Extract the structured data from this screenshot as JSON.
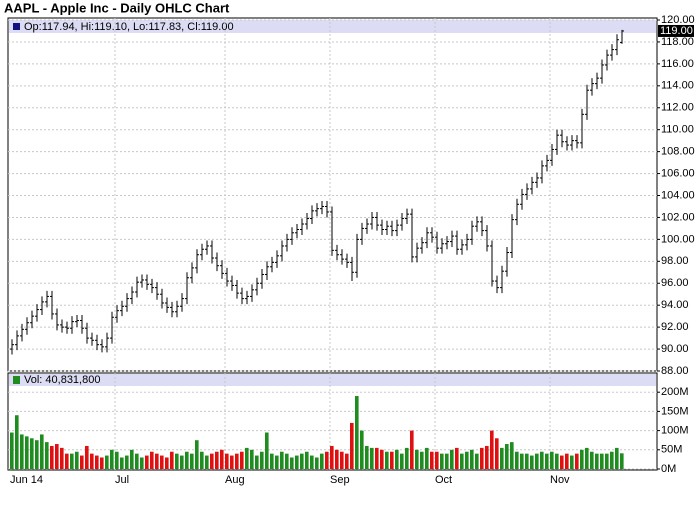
{
  "chart_data": {
    "type": "ohlc",
    "title": "AAPL - Apple Inc - Daily OHLC Chart",
    "price_legend": "Op:117.94, Hi:119.10, Lo:117.83, Cl:119.00",
    "volume_legend": "Vol: 40,831,800",
    "last_label": "119.00",
    "bar_color": "#000000",
    "up_color": "#1e8c1e",
    "down_color": "#e01010",
    "legend_band_color": "#dcdcf4",
    "grid": true,
    "categories": [
      "Jun 14",
      null,
      null,
      null,
      null,
      null,
      null,
      null,
      null,
      null,
      null,
      null,
      null,
      null,
      null,
      null,
      null,
      null,
      null,
      null,
      null,
      "Jul",
      null,
      null,
      null,
      null,
      null,
      null,
      null,
      null,
      null,
      null,
      null,
      null,
      null,
      null,
      null,
      null,
      null,
      null,
      null,
      null,
      null,
      "Aug",
      null,
      null,
      null,
      null,
      null,
      null,
      null,
      null,
      null,
      null,
      null,
      null,
      null,
      null,
      null,
      null,
      null,
      null,
      null,
      null,
      "Sep",
      null,
      null,
      null,
      null,
      null,
      null,
      null,
      null,
      null,
      null,
      null,
      null,
      null,
      null,
      null,
      null,
      null,
      null,
      null,
      null,
      "Oct",
      null,
      null,
      null,
      null,
      null,
      null,
      null,
      null,
      null,
      null,
      null,
      null,
      null,
      null,
      null,
      null,
      null,
      null,
      null,
      null,
      null,
      null,
      "Nov",
      null,
      null,
      null,
      null,
      null,
      null,
      null,
      null,
      null,
      null,
      null,
      null,
      null,
      null
    ],
    "ohlc": [
      [
        90.0,
        90.9,
        89.5,
        90.4
      ],
      [
        90.4,
        91.7,
        89.9,
        91.2
      ],
      [
        91.2,
        92.3,
        90.7,
        91.8
      ],
      [
        91.8,
        92.9,
        91.3,
        92.4
      ],
      [
        92.4,
        93.5,
        91.9,
        93.0
      ],
      [
        93.0,
        94.1,
        92.5,
        93.6
      ],
      [
        93.6,
        94.8,
        93.1,
        94.3
      ],
      [
        94.3,
        95.3,
        93.8,
        94.8
      ],
      [
        94.8,
        95.3,
        92.7,
        93.2
      ],
      [
        93.2,
        93.7,
        91.7,
        92.2
      ],
      [
        92.2,
        92.7,
        91.5,
        92.0
      ],
      [
        92.0,
        92.5,
        91.4,
        91.9
      ],
      [
        91.9,
        93.0,
        91.4,
        92.5
      ],
      [
        92.5,
        93.1,
        92.0,
        92.6
      ],
      [
        92.6,
        93.1,
        91.4,
        91.9
      ],
      [
        91.9,
        92.4,
        90.5,
        91.0
      ],
      [
        91.0,
        91.5,
        90.3,
        90.8
      ],
      [
        90.8,
        91.3,
        89.9,
        90.4
      ],
      [
        90.4,
        90.9,
        89.7,
        90.2
      ],
      [
        90.2,
        91.5,
        89.7,
        91.0
      ],
      [
        91.0,
        93.4,
        90.5,
        92.9
      ],
      [
        92.9,
        94.0,
        92.4,
        93.5
      ],
      [
        93.5,
        94.4,
        93.0,
        93.9
      ],
      [
        93.9,
        95.1,
        93.4,
        94.6
      ],
      [
        94.6,
        95.7,
        94.1,
        95.2
      ],
      [
        95.2,
        96.6,
        94.7,
        96.1
      ],
      [
        96.1,
        96.8,
        95.6,
        96.3
      ],
      [
        96.3,
        96.8,
        95.4,
        95.9
      ],
      [
        95.9,
        96.4,
        95.1,
        95.6
      ],
      [
        95.6,
        96.1,
        94.5,
        95.0
      ],
      [
        95.0,
        95.5,
        93.7,
        94.2
      ],
      [
        94.2,
        94.7,
        93.3,
        93.8
      ],
      [
        93.8,
        94.3,
        92.9,
        93.4
      ],
      [
        93.4,
        94.4,
        92.9,
        93.9
      ],
      [
        93.9,
        95.1,
        93.4,
        94.6
      ],
      [
        94.6,
        97.0,
        94.1,
        96.5
      ],
      [
        96.5,
        97.9,
        96.0,
        97.4
      ],
      [
        97.4,
        99.1,
        96.9,
        98.6
      ],
      [
        98.6,
        99.6,
        98.1,
        99.1
      ],
      [
        99.1,
        99.9,
        98.6,
        99.4
      ],
      [
        99.4,
        99.9,
        97.8,
        98.3
      ],
      [
        98.3,
        98.8,
        97.1,
        97.6
      ],
      [
        97.6,
        98.1,
        96.4,
        96.9
      ],
      [
        96.9,
        97.4,
        95.7,
        96.2
      ],
      [
        96.2,
        96.7,
        95.3,
        95.8
      ],
      [
        95.8,
        96.3,
        94.6,
        95.1
      ],
      [
        95.1,
        95.6,
        94.1,
        94.6
      ],
      [
        94.6,
        95.3,
        94.1,
        94.8
      ],
      [
        94.8,
        95.9,
        94.3,
        95.4
      ],
      [
        95.4,
        96.5,
        94.9,
        96.0
      ],
      [
        96.0,
        97.3,
        95.5,
        96.8
      ],
      [
        96.8,
        98.0,
        96.3,
        97.5
      ],
      [
        97.5,
        98.4,
        97.0,
        97.9
      ],
      [
        97.9,
        99.0,
        97.4,
        98.5
      ],
      [
        98.5,
        99.9,
        98.0,
        99.4
      ],
      [
        99.4,
        100.5,
        98.9,
        100.0
      ],
      [
        100.0,
        101.1,
        99.5,
        100.6
      ],
      [
        100.6,
        101.4,
        100.1,
        100.9
      ],
      [
        100.9,
        101.9,
        100.4,
        101.4
      ],
      [
        101.4,
        102.4,
        100.9,
        101.9
      ],
      [
        101.9,
        103.1,
        101.4,
        102.6
      ],
      [
        102.6,
        103.3,
        102.1,
        102.8
      ],
      [
        102.8,
        103.5,
        102.3,
        103.0
      ],
      [
        103.0,
        103.5,
        102.0,
        102.5
      ],
      [
        102.5,
        103.0,
        98.5,
        99.0
      ],
      [
        99.0,
        99.5,
        98.1,
        98.6
      ],
      [
        98.6,
        99.1,
        97.7,
        98.2
      ],
      [
        98.2,
        98.7,
        97.4,
        97.9
      ],
      [
        97.9,
        98.4,
        96.2,
        97.0
      ],
      [
        97.0,
        100.5,
        96.5,
        100.0
      ],
      [
        100.0,
        101.5,
        99.5,
        101.0
      ],
      [
        101.0,
        101.9,
        100.5,
        101.4
      ],
      [
        101.4,
        102.5,
        100.9,
        102.0
      ],
      [
        102.0,
        102.5,
        100.8,
        101.3
      ],
      [
        101.3,
        101.8,
        100.4,
        100.9
      ],
      [
        100.9,
        101.7,
        100.4,
        101.2
      ],
      [
        101.2,
        101.7,
        100.3,
        100.8
      ],
      [
        100.8,
        101.8,
        100.3,
        101.3
      ],
      [
        101.3,
        102.4,
        100.8,
        101.9
      ],
      [
        101.9,
        102.8,
        101.4,
        102.3
      ],
      [
        102.3,
        102.8,
        97.9,
        98.4
      ],
      [
        98.4,
        99.7,
        97.9,
        99.2
      ],
      [
        99.2,
        100.2,
        98.7,
        99.7
      ],
      [
        99.7,
        101.1,
        99.2,
        100.6
      ],
      [
        100.6,
        101.1,
        99.7,
        100.2
      ],
      [
        100.2,
        100.7,
        98.7,
        99.2
      ],
      [
        99.2,
        100.1,
        98.7,
        99.6
      ],
      [
        99.6,
        100.3,
        99.1,
        99.8
      ],
      [
        99.8,
        100.8,
        99.3,
        100.3
      ],
      [
        100.3,
        100.8,
        98.6,
        99.1
      ],
      [
        99.1,
        100.0,
        98.6,
        99.5
      ],
      [
        99.5,
        100.5,
        99.0,
        100.0
      ],
      [
        100.0,
        101.7,
        99.5,
        101.2
      ],
      [
        101.2,
        102.1,
        100.7,
        101.6
      ],
      [
        101.6,
        102.1,
        100.3,
        100.8
      ],
      [
        100.8,
        101.3,
        98.9,
        99.4
      ],
      [
        99.4,
        99.9,
        95.7,
        96.2
      ],
      [
        96.2,
        96.7,
        95.1,
        95.6
      ],
      [
        95.6,
        97.6,
        95.1,
        97.1
      ],
      [
        97.1,
        99.3,
        96.6,
        98.8
      ],
      [
        98.8,
        102.3,
        98.3,
        101.8
      ],
      [
        101.8,
        103.7,
        101.3,
        103.2
      ],
      [
        103.2,
        104.6,
        102.7,
        104.1
      ],
      [
        104.1,
        105.1,
        103.6,
        104.6
      ],
      [
        104.6,
        105.7,
        104.1,
        105.2
      ],
      [
        105.2,
        106.1,
        104.7,
        105.6
      ],
      [
        105.6,
        107.2,
        105.1,
        106.7
      ],
      [
        106.7,
        107.7,
        106.2,
        107.2
      ],
      [
        107.2,
        108.7,
        106.7,
        108.2
      ],
      [
        108.2,
        110.0,
        107.7,
        109.5
      ],
      [
        109.5,
        110.0,
        108.4,
        108.9
      ],
      [
        108.9,
        109.4,
        108.1,
        108.6
      ],
      [
        108.6,
        109.5,
        108.1,
        109.0
      ],
      [
        109.0,
        109.5,
        108.3,
        108.8
      ],
      [
        108.8,
        111.9,
        108.3,
        111.4
      ],
      [
        111.4,
        114.1,
        110.9,
        113.6
      ],
      [
        113.6,
        114.7,
        113.1,
        114.2
      ],
      [
        114.2,
        115.2,
        113.7,
        114.7
      ],
      [
        114.7,
        116.4,
        114.2,
        115.9
      ],
      [
        115.9,
        117.3,
        115.4,
        116.8
      ],
      [
        116.8,
        117.8,
        116.3,
        117.3
      ],
      [
        117.3,
        118.7,
        116.8,
        118.2
      ],
      [
        117.94,
        119.1,
        117.83,
        119.0
      ]
    ],
    "volume": [
      95,
      140,
      90,
      85,
      80,
      75,
      90,
      70,
      60,
      65,
      55,
      40,
      40,
      45,
      35,
      60,
      40,
      35,
      30,
      35,
      50,
      45,
      30,
      35,
      50,
      40,
      30,
      35,
      45,
      40,
      35,
      30,
      45,
      40,
      35,
      45,
      40,
      75,
      45,
      35,
      40,
      45,
      50,
      40,
      35,
      40,
      45,
      55,
      50,
      35,
      45,
      95,
      40,
      35,
      45,
      40,
      30,
      35,
      40,
      45,
      35,
      30,
      40,
      45,
      60,
      50,
      45,
      40,
      120,
      190,
      100,
      60,
      55,
      55,
      50,
      45,
      45,
      50,
      40,
      55,
      100,
      50,
      45,
      55,
      45,
      45,
      40,
      40,
      50,
      55,
      40,
      45,
      50,
      40,
      55,
      60,
      100,
      80,
      55,
      65,
      70,
      45,
      40,
      40,
      35,
      40,
      45,
      40,
      45,
      40,
      35,
      40,
      35,
      40,
      50,
      55,
      45,
      40,
      40,
      40,
      45,
      55,
      40.8318
    ],
    "ylim": [
      88,
      120
    ],
    "yticks": [
      {
        "value": 88,
        "label": "88.00"
      },
      {
        "value": 90,
        "label": "90.00"
      },
      {
        "value": 92,
        "label": "92.00"
      },
      {
        "value": 94,
        "label": "94.00"
      },
      {
        "value": 96,
        "label": "96.00"
      },
      {
        "value": 98,
        "label": "98.00"
      },
      {
        "value": 100,
        "label": "100.00"
      },
      {
        "value": 102,
        "label": "102.00"
      },
      {
        "value": 104,
        "label": "104.00"
      },
      {
        "value": 106,
        "label": "106.00"
      },
      {
        "value": 108,
        "label": "108.00"
      },
      {
        "value": 110,
        "label": "110.00"
      },
      {
        "value": 112,
        "label": "112.00"
      },
      {
        "value": 114,
        "label": "114.00"
      },
      {
        "value": 116,
        "label": "116.00"
      },
      {
        "value": 118,
        "label": "118.00"
      },
      {
        "value": 120,
        "label": "120.00"
      }
    ],
    "y2lim": [
      0,
      250
    ],
    "y2ticks": [
      {
        "value": 0,
        "label": "0M"
      },
      {
        "value": 50,
        "label": "50M"
      },
      {
        "value": 100,
        "label": "100M"
      },
      {
        "value": 150,
        "label": "150M"
      },
      {
        "value": 200,
        "label": "200M"
      }
    ]
  }
}
